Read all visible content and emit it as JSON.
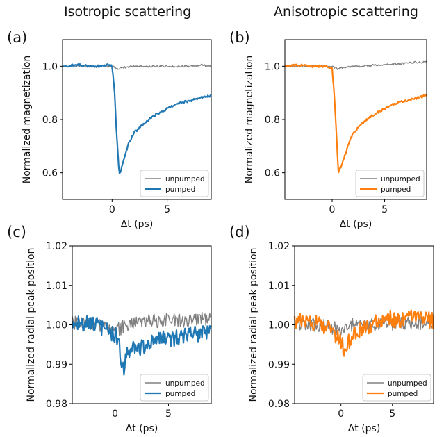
{
  "columns": {
    "left_title": "Isotropic scattering",
    "right_title": "Anisotropic scattering"
  },
  "colors": {
    "unpumped": "#808080",
    "pumped_isotropic": "#1f77b4",
    "pumped_anisotropic": "#ff7f0e",
    "axes": "#000000"
  },
  "chart_data": [
    {
      "panel": "(a)",
      "type": "line",
      "xlabel": "Δt (ps)",
      "ylabel": "Normalized  magnetization",
      "xlim": [
        -4.5,
        9
      ],
      "ylim": [
        0.5,
        1.1
      ],
      "xticks": [
        0,
        5
      ],
      "yticks": [
        0.6,
        0.8,
        1.0
      ],
      "ytick_labels": [
        "0.6",
        "0.8",
        "1.0"
      ],
      "legend": "bottom-right",
      "series": [
        {
          "name": "unpumped",
          "color": "#808080",
          "x": [
            -4.5,
            -3,
            -1.5,
            0,
            0.5,
            1,
            2,
            3,
            4,
            5,
            6,
            7,
            8,
            9
          ],
          "y": [
            1.0,
            1.0,
            1.0,
            1.0,
            0.99,
            0.995,
            1.0,
            1.0,
            1.0,
            1.0,
            1.0,
            1.0,
            1.005,
            1.0
          ]
        },
        {
          "name": "pumped",
          "color": "#1f77b4",
          "x": [
            -4.5,
            -3,
            -2,
            -1,
            -0.5,
            0,
            0.2,
            0.4,
            0.6,
            0.7,
            1.0,
            1.5,
            2,
            3,
            4,
            5,
            6,
            7,
            8,
            9
          ],
          "y": [
            1.0,
            1.005,
            1.0,
            1.0,
            1.005,
            1.0,
            0.92,
            0.75,
            0.62,
            0.59,
            0.64,
            0.71,
            0.75,
            0.79,
            0.82,
            0.84,
            0.86,
            0.87,
            0.88,
            0.89
          ]
        }
      ]
    },
    {
      "panel": "(b)",
      "type": "line",
      "xlabel": "Δt (ps)",
      "ylabel": "Normalized  magnetization",
      "xlim": [
        -4.5,
        9
      ],
      "ylim": [
        0.5,
        1.1
      ],
      "xticks": [
        0,
        5
      ],
      "yticks": [
        0.6,
        0.8,
        1.0
      ],
      "ytick_labels": [
        "0.6",
        "0.8",
        "1.0"
      ],
      "legend": "bottom-right",
      "series": [
        {
          "name": "unpumped",
          "color": "#808080",
          "x": [
            -4.5,
            -3,
            -1.5,
            0,
            0.5,
            1,
            2,
            3,
            4,
            5,
            6,
            7,
            8,
            9
          ],
          "y": [
            1.0,
            1.0,
            1.0,
            1.0,
            0.99,
            0.995,
            1.0,
            1.0,
            1.005,
            1.005,
            1.01,
            1.01,
            1.015,
            1.015
          ]
        },
        {
          "name": "pumped",
          "color": "#ff7f0e",
          "x": [
            -4.5,
            -3,
            -2,
            -1,
            -0.5,
            0,
            0.2,
            0.4,
            0.6,
            1.0,
            1.5,
            2,
            3,
            4,
            5,
            6,
            7,
            8,
            9
          ],
          "y": [
            1.0,
            1.005,
            1.0,
            1.0,
            1.0,
            0.99,
            0.9,
            0.75,
            0.6,
            0.64,
            0.7,
            0.75,
            0.79,
            0.82,
            0.84,
            0.86,
            0.87,
            0.88,
            0.89
          ]
        }
      ]
    },
    {
      "panel": "(c)",
      "type": "line",
      "xlabel": "Δt (ps)",
      "ylabel": "Normalized  radial peak position",
      "xlim": [
        -4,
        9
      ],
      "ylim": [
        0.98,
        1.02
      ],
      "xticks": [
        0,
        5
      ],
      "yticks": [
        0.98,
        0.99,
        1.0,
        1.01,
        1.02
      ],
      "ytick_labels": [
        "0.98",
        "0.99",
        "1.00",
        "1.01",
        "1.02"
      ],
      "legend": "bottom-right",
      "series": [
        {
          "name": "unpumped",
          "color": "#808080",
          "x": [
            -4,
            -3,
            -2,
            -1,
            0,
            0.5,
            1,
            2,
            3,
            4,
            5,
            6,
            7,
            8,
            9
          ],
          "y": [
            1.0005,
            1.0005,
            1.0,
            1.0,
            0.9985,
            0.999,
            1.0,
            1.0005,
            1.001,
            1.001,
            1.0015,
            1.001,
            1.001,
            1.0015,
            1.001
          ]
        },
        {
          "name": "pumped",
          "color": "#1f77b4",
          "x": [
            -4,
            -3,
            -2,
            -1,
            0,
            0.3,
            0.6,
            0.8,
            1.0,
            1.3,
            2,
            3,
            4,
            5,
            6,
            7,
            8,
            9
          ],
          "y": [
            1.001,
            1.0005,
            1.0,
            0.999,
            0.9975,
            0.996,
            0.991,
            0.988,
            0.9915,
            0.993,
            0.994,
            0.995,
            0.996,
            0.9965,
            0.997,
            0.9975,
            0.998,
            0.998
          ]
        }
      ]
    },
    {
      "panel": "(d)",
      "type": "line",
      "xlabel": "Δt (ps)",
      "ylabel": "Normalized  radial peak position",
      "xlim": [
        -4.5,
        9
      ],
      "ylim": [
        0.98,
        1.02
      ],
      "xticks": [
        0,
        5
      ],
      "yticks": [
        0.98,
        0.99,
        1.0,
        1.01,
        1.02
      ],
      "ytick_labels": [
        "0.98",
        "0.99",
        "1.00",
        "1.01",
        "1.02"
      ],
      "legend": "bottom-right",
      "series": [
        {
          "name": "unpumped",
          "color": "#808080",
          "x": [
            -4.5,
            -3,
            -2,
            -1,
            0,
            1,
            2,
            3,
            4,
            5,
            6,
            7,
            8,
            9
          ],
          "y": [
            1.0,
            1.0,
            1.0,
            0.9995,
            0.9985,
            1.0,
            1.0,
            1.0,
            1.0005,
            1.0,
            1.0005,
            1.0,
            1.0005,
            1.0
          ]
        },
        {
          "name": "pumped",
          "color": "#ff7f0e",
          "x": [
            -4.5,
            -3,
            -2,
            -1,
            -0.5,
            0,
            0.3,
            0.6,
            1.0,
            2,
            3,
            4,
            5,
            6,
            7,
            8,
            9
          ],
          "y": [
            1.001,
            1.0005,
            1.0,
            0.999,
            0.997,
            0.996,
            0.9935,
            0.995,
            0.997,
            0.999,
            1.0,
            1.0015,
            1.0015,
            1.001,
            1.002,
            1.0015,
            1.001
          ]
        }
      ]
    }
  ]
}
